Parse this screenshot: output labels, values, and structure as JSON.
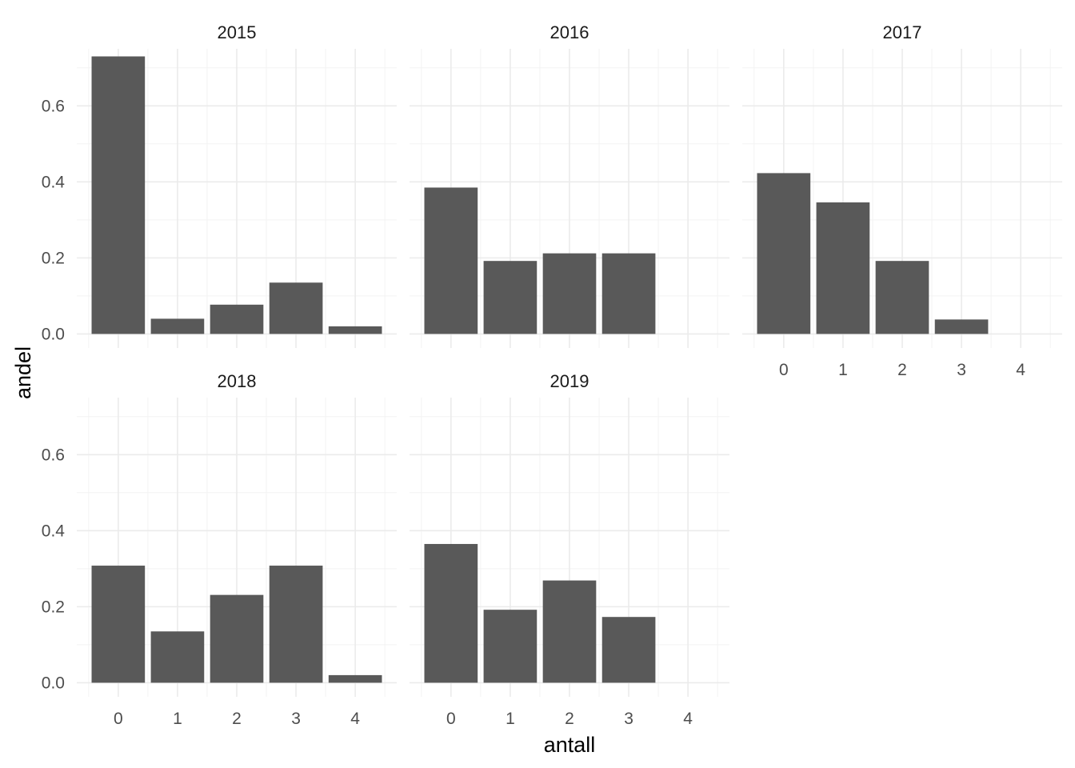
{
  "chart_data": {
    "type": "bar",
    "xlabel": "antall",
    "ylabel": "andel",
    "ylim": [
      0,
      0.75
    ],
    "y_breaks": [
      0.0,
      0.2,
      0.4,
      0.6
    ],
    "y_break_labels": [
      "0.0",
      "0.2",
      "0.4",
      "0.6"
    ],
    "categories": [
      "0",
      "1",
      "2",
      "3",
      "4"
    ],
    "grid": true,
    "bar_color": "#595959",
    "panels": [
      {
        "name": "2015",
        "values": [
          0.73,
          0.04,
          0.077,
          0.135,
          0.02
        ]
      },
      {
        "name": "2016",
        "values": [
          0.385,
          0.192,
          0.212,
          0.212,
          0
        ]
      },
      {
        "name": "2017",
        "values": [
          0.423,
          0.346,
          0.192,
          0.038,
          0
        ]
      },
      {
        "name": "2018",
        "values": [
          0.308,
          0.135,
          0.231,
          0.308,
          0.02
        ]
      },
      {
        "name": "2019",
        "values": [
          0.365,
          0.192,
          0.269,
          0.173,
          0
        ]
      }
    ]
  }
}
